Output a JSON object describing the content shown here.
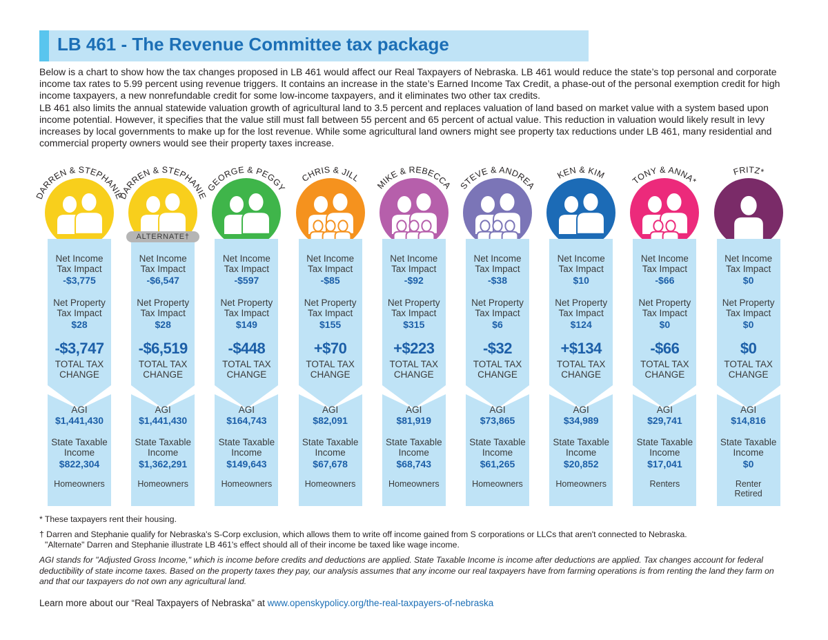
{
  "title": "LB 461 - The Revenue Committee tax package",
  "intro": [
    "Below is a chart to show how the tax changes proposed in LB 461 would affect our Real Taxpayers of Nebraska. LB 461 would reduce the state’s top personal and corporate income tax rates to 5.99 percent using revenue triggers. It contains an increase in the state’s Earned Income Tax Credit, a phase-out of the personal exemption credit for high income taxpayers, a new nonrefundable credit for some low-income taxpayers, and it eliminates two other tax credits.",
    "LB 461 also limits the annual statewide valuation growth of agricultural land to 3.5 percent and replaces valuation of land based on market value with a system based upon income potential. However, it specifies that the value still must fall between 55 percent and 65 percent of actual value. This reduction in valuation would likely result in levy increases by local governments to make up for the lost revenue. While some agricultural land owners might see property tax reductions under LB 461, many residential and commercial property owners would see their property taxes increase."
  ],
  "labels": {
    "net_income_1": "Net Income",
    "net_income_2": "Tax Impact",
    "net_property_1": "Net Property",
    "net_property_2": "Tax Impact",
    "total_1": "TOTAL TAX",
    "total_2": "CHANGE",
    "agi": "AGI",
    "sti_1": "State Taxable",
    "sti_2": "Income",
    "alternate": "ALTERNATE†"
  },
  "colors": {
    "title_text": "#1c6fb6",
    "title_bg": "#bfe3f6",
    "panel": "#bfe3f6",
    "value_text": "#1c5fa8"
  },
  "taxpayers": [
    {
      "name": "DARREN & STEPHANIE",
      "color": "#f8cf1c",
      "people": 2,
      "kids": 0,
      "income_tax": "-$3,775",
      "property_tax": "$28",
      "total": "-$3,747",
      "agi": "$1,441,430",
      "sti": "$822,304",
      "housing": "Homeowners",
      "housing2": ""
    },
    {
      "name": "DARREN & STEPHANIE",
      "color": "#f8cf1c",
      "people": 2,
      "kids": 0,
      "alternate": true,
      "income_tax": "-$6,547",
      "property_tax": "$28",
      "total": "-$6,519",
      "agi": "$1,441,430",
      "sti": "$1,362,291",
      "housing": "Homeowners",
      "housing2": ""
    },
    {
      "name": "GEORGE & PEGGY",
      "color": "#3fb54a",
      "people": 2,
      "kids": 0,
      "income_tax": "-$597",
      "property_tax": "$149",
      "total": "-$448",
      "agi": "$164,743",
      "sti": "$149,643",
      "housing": "Homeowners",
      "housing2": ""
    },
    {
      "name": "CHRIS & JILL",
      "color": "#f5921e",
      "people": 2,
      "kids": 3,
      "income_tax": "-$85",
      "property_tax": "$155",
      "total": "+$70",
      "agi": "$82,091",
      "sti": "$67,678",
      "housing": "Homeowners",
      "housing2": ""
    },
    {
      "name": "MIKE & REBECCA",
      "color": "#b65fab",
      "people": 2,
      "kids": 3,
      "income_tax": "-$92",
      "property_tax": "$315",
      "total": "+$223",
      "agi": "$81,919",
      "sti": "$68,743",
      "housing": "Homeowners",
      "housing2": ""
    },
    {
      "name": "STEVE & ANDREA",
      "color": "#7b75b7",
      "people": 2,
      "kids": 3,
      "income_tax": "-$38",
      "property_tax": "$6",
      "total": "-$32",
      "agi": "$73,865",
      "sti": "$61,265",
      "housing": "Homeowners",
      "housing2": ""
    },
    {
      "name": "KEN & KIM",
      "color": "#1c6bb6",
      "people": 2,
      "kids": 0,
      "income_tax": "$10",
      "property_tax": "$124",
      "total": "+$134",
      "agi": "$34,989",
      "sti": "$20,852",
      "housing": "Homeowners",
      "housing2": ""
    },
    {
      "name": "TONY & ANNA*",
      "color": "#ec2a7b",
      "people": 2,
      "kids": 2,
      "income_tax": "-$66",
      "property_tax": "$0",
      "total": "-$66",
      "agi": "$29,741",
      "sti": "$17,041",
      "housing": "Renters",
      "housing2": ""
    },
    {
      "name": "FRITZ*",
      "color": "#7a2b68",
      "people": 1,
      "kids": 0,
      "income_tax": "$0",
      "property_tax": "$0",
      "total": "$0",
      "agi": "$14,816",
      "sti": "$0",
      "housing": "Renter",
      "housing2": "Retired"
    }
  ],
  "notes": {
    "rent": "* These taxpayers rent their housing.",
    "dagger_1": "† Darren and Stephanie qualify for Nebraska's S-Corp exclusion, which allows them to write off income gained from S corporations or LLCs that aren't connected to Nebraska.",
    "dagger_2": "\"Alternate\" Darren and Stephanie illustrate LB 461's effect should all of their income be taxed like wage income.",
    "agi_note": "AGI stands for \"Adjusted Gross Income,\" which is income before credits and deductions are applied. State Taxable Income is income after deductions are applied. Tax changes account for federal deductibility of state income taxes. Based on the property taxes they pay, our analysis assumes that any income our real taxpayers have from farming operations is from renting the land they farm on and that our taxpayers do not own any agricultural land.",
    "learn_prefix": "Learn more about our “Real Taxpayers of Nebraska” at ",
    "learn_link": "www.openskypolicy.org/the-real-taxpayers-of-nebraska"
  }
}
